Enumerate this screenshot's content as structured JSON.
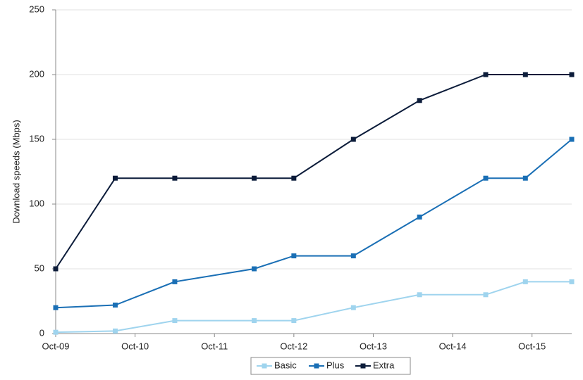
{
  "chart_data": {
    "type": "line",
    "y_label": "Download speeds (Mbps)",
    "x": [
      "2009-10",
      "2010-07",
      "2011-04",
      "2012-04",
      "2012-10",
      "2013-07",
      "2014-05",
      "2015-03",
      "2015-09",
      "2016-04"
    ],
    "series": [
      {
        "name": "Basic",
        "color": "#9fd4ee",
        "values": [
          1,
          2,
          10,
          10,
          10,
          20,
          30,
          30,
          40,
          40
        ]
      },
      {
        "name": "Plus",
        "color": "#1a6fb5",
        "values": [
          20,
          22,
          40,
          50,
          60,
          60,
          90,
          120,
          120,
          150
        ]
      },
      {
        "name": "Extra",
        "color": "#0c1c3a",
        "values": [
          50,
          120,
          120,
          120,
          120,
          150,
          180,
          200,
          200,
          200
        ]
      }
    ],
    "xlim": [
      "2009-10",
      "2016-04"
    ],
    "xticks": [
      {
        "value": "2009-10",
        "label": "Oct-09"
      },
      {
        "value": "2010-10",
        "label": "Oct-10"
      },
      {
        "value": "2011-10",
        "label": "Oct-11"
      },
      {
        "value": "2012-10",
        "label": "Oct-12"
      },
      {
        "value": "2013-10",
        "label": "Oct-13"
      },
      {
        "value": "2014-10",
        "label": "Oct-14"
      },
      {
        "value": "2015-10",
        "label": "Oct-15"
      }
    ],
    "ylim": [
      0,
      250
    ],
    "yticks": [
      0,
      50,
      100,
      150,
      200,
      250
    ],
    "grid": true,
    "legend": "bottom"
  }
}
